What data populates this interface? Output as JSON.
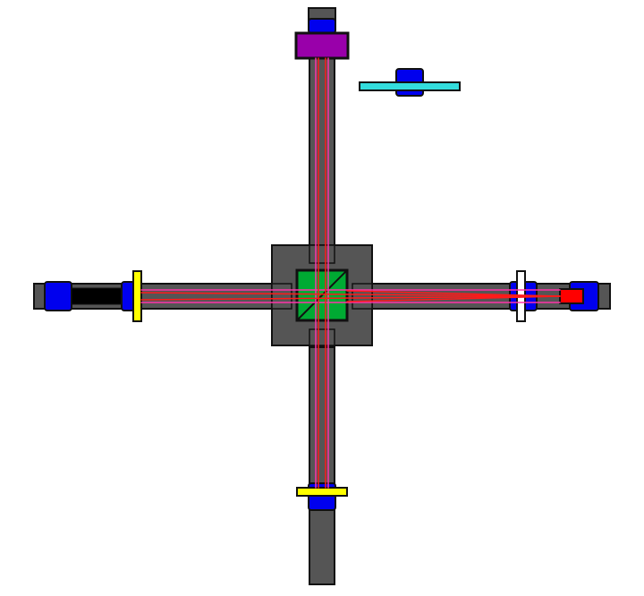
{
  "colors": {
    "background": "#ffffff",
    "rail": "#555555",
    "outline": "#111111",
    "mount": "#0000ee",
    "beam": "#ff1a1a",
    "beam_guide": "#ff33aa",
    "beamsplitter": "#00aa33",
    "top_block": "#9900aa",
    "cyan_plate": "#33dddd",
    "yellow_optic": "#ffff00",
    "white_optic": "#ffffff",
    "laser_source": "#ff0000",
    "black_tube": "#000000"
  },
  "components": [
    {
      "name": "top-end-cap-icon"
    },
    {
      "name": "top-mirror-mount-icon"
    },
    {
      "name": "purple-optic-block-icon"
    },
    {
      "name": "cyan-plate-icon"
    },
    {
      "name": "central-housing-icon"
    },
    {
      "name": "beamsplitter-cube-icon"
    },
    {
      "name": "left-rail-icon"
    },
    {
      "name": "left-mirror-mount-icon"
    },
    {
      "name": "yellow-wave-plate-left-icon"
    },
    {
      "name": "right-rail-icon"
    },
    {
      "name": "white-lens-icon"
    },
    {
      "name": "laser-source-icon"
    },
    {
      "name": "bottom-rail-icon"
    },
    {
      "name": "yellow-wave-plate-bottom-icon"
    },
    {
      "name": "bottom-mirror-mount-icon"
    }
  ]
}
